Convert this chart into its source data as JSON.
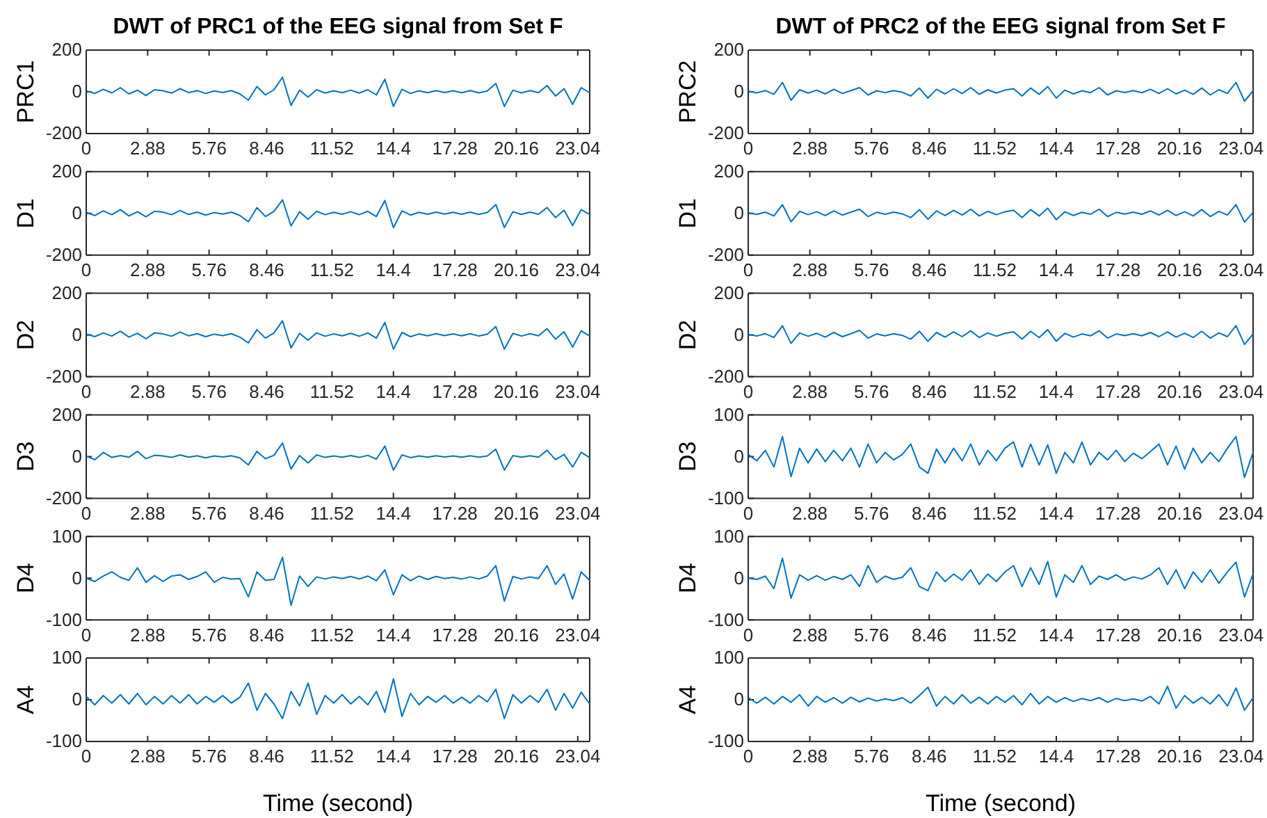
{
  "chart_data": [
    {
      "type": "line",
      "title": "DWT of PRC1 of the EEG signal from Set F",
      "ylabel": "PRC1",
      "color": "#0072bd",
      "xlim": [
        0,
        23.6
      ],
      "ylim": [
        -200,
        200
      ],
      "yticks": [
        -200,
        0,
        200
      ],
      "xticks": [
        0,
        2.88,
        5.76,
        8.46,
        11.52,
        14.4,
        17.28,
        20.16,
        23.04
      ],
      "x": [
        0,
        0.4,
        0.8,
        1.2,
        1.6,
        2,
        2.4,
        2.8,
        3.2,
        3.6,
        4,
        4.4,
        4.8,
        5.2,
        5.6,
        6,
        6.4,
        6.8,
        7.2,
        7.6,
        8,
        8.4,
        8.8,
        9.2,
        9.6,
        10,
        10.4,
        10.8,
        11.2,
        11.6,
        12,
        12.4,
        12.8,
        13.2,
        13.6,
        14,
        14.4,
        14.8,
        15.2,
        15.6,
        16,
        16.4,
        16.8,
        17.2,
        17.6,
        18,
        18.4,
        18.8,
        19.2,
        19.6,
        20,
        20.4,
        20.8,
        21.2,
        21.6,
        22,
        22.4,
        22.8,
        23.2,
        23.6
      ],
      "values": [
        5,
        -8,
        12,
        -5,
        20,
        -10,
        8,
        -18,
        10,
        5,
        -6,
        15,
        -4,
        6,
        -8,
        4,
        -3,
        6,
        -10,
        -40,
        25,
        -15,
        10,
        70,
        -65,
        8,
        -25,
        10,
        -6,
        5,
        -4,
        8,
        -6,
        10,
        -15,
        60,
        -70,
        12,
        -8,
        5,
        -4,
        6,
        -3,
        5,
        -4,
        6,
        -5,
        4,
        40,
        -70,
        8,
        -5,
        6,
        -4,
        30,
        -20,
        15,
        -60,
        20,
        -5
      ]
    },
    {
      "type": "line",
      "title": "DWT of PRC2 of the EEG signal from Set F",
      "ylabel": "PRC2",
      "color": "#0072bd",
      "xlim": [
        0,
        23.6
      ],
      "ylim": [
        -200,
        200
      ],
      "yticks": [
        -200,
        0,
        200
      ],
      "xticks": [
        0,
        2.88,
        5.76,
        8.46,
        11.52,
        14.4,
        17.28,
        20.16,
        23.04
      ],
      "x": [
        0,
        0.4,
        0.8,
        1.2,
        1.6,
        2,
        2.4,
        2.8,
        3.2,
        3.6,
        4,
        4.4,
        4.8,
        5.2,
        5.6,
        6,
        6.4,
        6.8,
        7.2,
        7.6,
        8,
        8.4,
        8.8,
        9.2,
        9.6,
        10,
        10.4,
        10.8,
        11.2,
        11.6,
        12,
        12.4,
        12.8,
        13.2,
        13.6,
        14,
        14.4,
        14.8,
        15.2,
        15.6,
        16,
        16.4,
        16.8,
        17.2,
        17.6,
        18,
        18.4,
        18.8,
        19.2,
        19.6,
        20,
        20.4,
        20.8,
        21.2,
        21.6,
        22,
        22.4,
        22.8,
        23.2,
        23.6
      ],
      "values": [
        3,
        -5,
        6,
        -12,
        45,
        -40,
        10,
        -6,
        8,
        -10,
        12,
        -8,
        6,
        20,
        -15,
        5,
        -4,
        6,
        -2,
        -20,
        18,
        -30,
        12,
        -10,
        15,
        -8,
        20,
        -12,
        10,
        -6,
        8,
        15,
        -20,
        18,
        -12,
        25,
        -30,
        8,
        -10,
        5,
        -4,
        20,
        -15,
        5,
        -3,
        6,
        -4,
        12,
        -8,
        15,
        -10,
        8,
        -12,
        18,
        -15,
        10,
        -8,
        45,
        -45,
        5
      ]
    },
    {
      "type": "line",
      "ylabel": "D1",
      "color": "#0072bd",
      "xlim": [
        0,
        23.6
      ],
      "ylim": [
        -200,
        200
      ],
      "yticks": [
        -200,
        0,
        200
      ],
      "xticks": [
        0,
        2.88,
        5.76,
        8.46,
        11.52,
        14.4,
        17.28,
        20.16,
        23.04
      ],
      "x": [
        0,
        0.4,
        0.8,
        1.2,
        1.6,
        2,
        2.4,
        2.8,
        3.2,
        3.6,
        4,
        4.4,
        4.8,
        5.2,
        5.6,
        6,
        6.4,
        6.8,
        7.2,
        7.6,
        8,
        8.4,
        8.8,
        9.2,
        9.6,
        10,
        10.4,
        10.8,
        11.2,
        11.6,
        12,
        12.4,
        12.8,
        13.2,
        13.6,
        14,
        14.4,
        14.8,
        15.2,
        15.6,
        16,
        16.4,
        16.8,
        17.2,
        17.6,
        18,
        18.4,
        18.8,
        19.2,
        19.6,
        20,
        20.4,
        20.8,
        21.2,
        21.6,
        22,
        22.4,
        22.8,
        23.2,
        23.6
      ],
      "values": [
        5,
        -10,
        12,
        -6,
        18,
        -12,
        8,
        -16,
        10,
        6,
        -6,
        14,
        -5,
        6,
        -8,
        4,
        -3,
        6,
        -10,
        -40,
        28,
        -15,
        10,
        65,
        -60,
        8,
        -28,
        10,
        -6,
        5,
        -4,
        8,
        -6,
        10,
        -15,
        62,
        -68,
        12,
        -8,
        5,
        -4,
        6,
        -3,
        5,
        -4,
        6,
        -5,
        4,
        42,
        -68,
        8,
        -5,
        6,
        -4,
        28,
        -20,
        15,
        -58,
        18,
        -5
      ]
    },
    {
      "type": "line",
      "ylabel": "D1",
      "color": "#0072bd",
      "xlim": [
        0,
        23.6
      ],
      "ylim": [
        -200,
        200
      ],
      "yticks": [
        -200,
        0,
        200
      ],
      "xticks": [
        0,
        2.88,
        5.76,
        8.46,
        11.52,
        14.4,
        17.28,
        20.16,
        23.04
      ],
      "x": [
        0,
        0.4,
        0.8,
        1.2,
        1.6,
        2,
        2.4,
        2.8,
        3.2,
        3.6,
        4,
        4.4,
        4.8,
        5.2,
        5.6,
        6,
        6.4,
        6.8,
        7.2,
        7.6,
        8,
        8.4,
        8.8,
        9.2,
        9.6,
        10,
        10.4,
        10.8,
        11.2,
        11.6,
        12,
        12.4,
        12.8,
        13.2,
        13.6,
        14,
        14.4,
        14.8,
        15.2,
        15.6,
        16,
        16.4,
        16.8,
        17.2,
        17.6,
        18,
        18.4,
        18.8,
        19.2,
        19.6,
        20,
        20.4,
        20.8,
        21.2,
        21.6,
        22,
        22.4,
        22.8,
        23.2,
        23.6
      ],
      "values": [
        3,
        -5,
        6,
        -12,
        42,
        -40,
        10,
        -6,
        8,
        -10,
        12,
        -8,
        6,
        20,
        -15,
        5,
        -4,
        6,
        -2,
        -20,
        18,
        -28,
        12,
        -10,
        15,
        -8,
        20,
        -12,
        10,
        -6,
        8,
        15,
        -20,
        18,
        -12,
        25,
        -30,
        8,
        -10,
        5,
        -4,
        20,
        -15,
        5,
        -3,
        6,
        -4,
        12,
        -8,
        15,
        -10,
        8,
        -12,
        18,
        -15,
        10,
        -8,
        42,
        -42,
        5
      ]
    },
    {
      "type": "line",
      "ylabel": "D2",
      "color": "#0072bd",
      "xlim": [
        0,
        23.6
      ],
      "ylim": [
        -200,
        200
      ],
      "yticks": [
        -200,
        0,
        200
      ],
      "xticks": [
        0,
        2.88,
        5.76,
        8.46,
        11.52,
        14.4,
        17.28,
        20.16,
        23.04
      ],
      "x": [
        0,
        0.4,
        0.8,
        1.2,
        1.6,
        2,
        2.4,
        2.8,
        3.2,
        3.6,
        4,
        4.4,
        4.8,
        5.2,
        5.6,
        6,
        6.4,
        6.8,
        7.2,
        7.6,
        8,
        8.4,
        8.8,
        9.2,
        9.6,
        10,
        10.4,
        10.8,
        11.2,
        11.6,
        12,
        12.4,
        12.8,
        13.2,
        13.6,
        14,
        14.4,
        14.8,
        15.2,
        15.6,
        16,
        16.4,
        16.8,
        17.2,
        17.6,
        18,
        18.4,
        18.8,
        19.2,
        19.6,
        20,
        20.4,
        20.8,
        21.2,
        21.6,
        22,
        22.4,
        22.8,
        23.2,
        23.6
      ],
      "values": [
        5,
        -8,
        10,
        -5,
        18,
        -10,
        8,
        -18,
        10,
        5,
        -6,
        14,
        -4,
        6,
        -8,
        4,
        -3,
        6,
        -10,
        -38,
        25,
        -15,
        10,
        68,
        -62,
        8,
        -25,
        10,
        -6,
        5,
        -4,
        8,
        -6,
        10,
        -15,
        60,
        -68,
        12,
        -8,
        5,
        -4,
        6,
        -3,
        5,
        -4,
        6,
        -5,
        4,
        40,
        -68,
        8,
        -5,
        6,
        -4,
        30,
        -20,
        15,
        -58,
        20,
        -5
      ]
    },
    {
      "type": "line",
      "ylabel": "D2",
      "color": "#0072bd",
      "xlim": [
        0,
        23.6
      ],
      "ylim": [
        -200,
        200
      ],
      "yticks": [
        -200,
        0,
        200
      ],
      "xticks": [
        0,
        2.88,
        5.76,
        8.46,
        11.52,
        14.4,
        17.28,
        20.16,
        23.04
      ],
      "x": [
        0,
        0.4,
        0.8,
        1.2,
        1.6,
        2,
        2.4,
        2.8,
        3.2,
        3.6,
        4,
        4.4,
        4.8,
        5.2,
        5.6,
        6,
        6.4,
        6.8,
        7.2,
        7.6,
        8,
        8.4,
        8.8,
        9.2,
        9.6,
        10,
        10.4,
        10.8,
        11.2,
        11.6,
        12,
        12.4,
        12.8,
        13.2,
        13.6,
        14,
        14.4,
        14.8,
        15.2,
        15.6,
        16,
        16.4,
        16.8,
        17.2,
        17.6,
        18,
        18.4,
        18.8,
        19.2,
        19.6,
        20,
        20.4,
        20.8,
        21.2,
        21.6,
        22,
        22.4,
        22.8,
        23.2,
        23.6
      ],
      "values": [
        3,
        -5,
        6,
        -12,
        44,
        -40,
        10,
        -6,
        8,
        -10,
        12,
        -8,
        6,
        22,
        -15,
        5,
        -4,
        6,
        -2,
        -20,
        18,
        -30,
        12,
        -10,
        15,
        -8,
        20,
        -12,
        10,
        -6,
        8,
        15,
        -20,
        18,
        -12,
        25,
        -30,
        8,
        -10,
        5,
        -4,
        20,
        -15,
        5,
        -3,
        6,
        -4,
        12,
        -8,
        15,
        -10,
        8,
        -12,
        18,
        -15,
        10,
        -8,
        45,
        -45,
        5
      ]
    },
    {
      "type": "line",
      "ylabel": "D3",
      "color": "#0072bd",
      "xlim": [
        0,
        23.6
      ],
      "ylim": [
        -200,
        200
      ],
      "yticks": [
        -200,
        0,
        200
      ],
      "xticks": [
        0,
        2.88,
        5.76,
        8.46,
        11.52,
        14.4,
        17.28,
        20.16,
        23.04
      ],
      "x": [
        0,
        0.4,
        0.8,
        1.2,
        1.6,
        2,
        2.4,
        2.8,
        3.2,
        3.6,
        4,
        4.4,
        4.8,
        5.2,
        5.6,
        6,
        6.4,
        6.8,
        7.2,
        7.6,
        8,
        8.4,
        8.8,
        9.2,
        9.6,
        10,
        10.4,
        10.8,
        11.2,
        11.6,
        12,
        12.4,
        12.8,
        13.2,
        13.6,
        14,
        14.4,
        14.8,
        15.2,
        15.6,
        16,
        16.4,
        16.8,
        17.2,
        17.6,
        18,
        18.4,
        18.8,
        19.2,
        19.6,
        20,
        20.4,
        20.8,
        21.2,
        21.6,
        22,
        22.4,
        22.8,
        23.2,
        23.6
      ],
      "values": [
        3,
        -15,
        20,
        -4,
        5,
        -3,
        25,
        -10,
        6,
        3,
        -4,
        8,
        -3,
        4,
        -6,
        3,
        -2,
        4,
        -6,
        -40,
        25,
        -10,
        6,
        65,
        -60,
        5,
        -30,
        8,
        -4,
        3,
        -3,
        5,
        -4,
        6,
        -12,
        50,
        -65,
        8,
        -5,
        3,
        -3,
        4,
        -2,
        3,
        -3,
        4,
        -3,
        3,
        35,
        -65,
        5,
        -3,
        4,
        -3,
        30,
        -15,
        10,
        -50,
        20,
        -5
      ]
    },
    {
      "type": "line",
      "ylabel": "D3",
      "color": "#0072bd",
      "xlim": [
        0,
        23.6
      ],
      "ylim": [
        -100,
        100
      ],
      "yticks": [
        -100,
        0,
        100
      ],
      "xticks": [
        0,
        2.88,
        5.76,
        8.46,
        11.52,
        14.4,
        17.28,
        20.16,
        23.04
      ],
      "x": [
        0,
        0.4,
        0.8,
        1.2,
        1.6,
        2,
        2.4,
        2.8,
        3.2,
        3.6,
        4,
        4.4,
        4.8,
        5.2,
        5.6,
        6,
        6.4,
        6.8,
        7.2,
        7.6,
        8,
        8.4,
        8.8,
        9.2,
        9.6,
        10,
        10.4,
        10.8,
        11.2,
        11.6,
        12,
        12.4,
        12.8,
        13.2,
        13.6,
        14,
        14.4,
        14.8,
        15.2,
        15.6,
        16,
        16.4,
        16.8,
        17.2,
        17.6,
        18,
        18.4,
        18.8,
        19.2,
        19.6,
        20,
        20.4,
        20.8,
        21.2,
        21.6,
        22,
        22.4,
        22.8,
        23.2,
        23.6
      ],
      "values": [
        5,
        -10,
        15,
        -25,
        48,
        -48,
        20,
        -15,
        18,
        -12,
        15,
        -10,
        20,
        -25,
        30,
        -15,
        10,
        -8,
        5,
        30,
        -25,
        -40,
        18,
        -15,
        20,
        -10,
        30,
        -20,
        15,
        -10,
        20,
        35,
        -25,
        30,
        -20,
        28,
        -40,
        10,
        -15,
        35,
        -20,
        10,
        -8,
        15,
        -12,
        8,
        -5,
        12,
        30,
        -20,
        25,
        -30,
        20,
        -15,
        10,
        -12,
        20,
        48,
        -50,
        10
      ]
    },
    {
      "type": "line",
      "ylabel": "D4",
      "color": "#0072bd",
      "xlim": [
        0,
        23.6
      ],
      "ylim": [
        -100,
        100
      ],
      "yticks": [
        -100,
        0,
        100
      ],
      "xticks": [
        0,
        2.88,
        5.76,
        8.46,
        11.52,
        14.4,
        17.28,
        20.16,
        23.04
      ],
      "x": [
        0,
        0.4,
        0.8,
        1.2,
        1.6,
        2,
        2.4,
        2.8,
        3.2,
        3.6,
        4,
        4.4,
        4.8,
        5.2,
        5.6,
        6,
        6.4,
        6.8,
        7.2,
        7.6,
        8,
        8.4,
        8.8,
        9.2,
        9.6,
        10,
        10.4,
        10.8,
        11.2,
        11.6,
        12,
        12.4,
        12.8,
        13.2,
        13.6,
        14,
        14.4,
        14.8,
        15.2,
        15.6,
        16,
        16.4,
        16.8,
        17.2,
        17.6,
        18,
        18.4,
        18.8,
        19.2,
        19.6,
        20,
        20.4,
        20.8,
        21.2,
        21.6,
        22,
        22.4,
        22.8,
        23.2,
        23.6
      ],
      "values": [
        0,
        -8,
        5,
        15,
        2,
        -5,
        25,
        -10,
        6,
        -8,
        5,
        8,
        -3,
        4,
        15,
        -10,
        2,
        -2,
        -1,
        -45,
        15,
        -5,
        -3,
        50,
        -65,
        5,
        -20,
        3,
        -2,
        3,
        -1,
        4,
        -2,
        5,
        -6,
        20,
        -40,
        8,
        -6,
        5,
        -3,
        4,
        -1,
        2,
        -2,
        3,
        -2,
        5,
        30,
        -55,
        4,
        -2,
        3,
        -1,
        30,
        -15,
        10,
        -50,
        15,
        -5
      ]
    },
    {
      "type": "line",
      "ylabel": "D4",
      "color": "#0072bd",
      "xlim": [
        0,
        23.6
      ],
      "ylim": [
        -100,
        100
      ],
      "yticks": [
        -100,
        0,
        100
      ],
      "xticks": [
        0,
        2.88,
        5.76,
        8.46,
        11.52,
        14.4,
        17.28,
        20.16,
        23.04
      ],
      "x": [
        0,
        0.4,
        0.8,
        1.2,
        1.6,
        2,
        2.4,
        2.8,
        3.2,
        3.6,
        4,
        4.4,
        4.8,
        5.2,
        5.6,
        6,
        6.4,
        6.8,
        7.2,
        7.6,
        8,
        8.4,
        8.8,
        9.2,
        9.6,
        10,
        10.4,
        10.8,
        11.2,
        11.6,
        12,
        12.4,
        12.8,
        13.2,
        13.6,
        14,
        14.4,
        14.8,
        15.2,
        15.6,
        16,
        16.4,
        16.8,
        17.2,
        17.6,
        18,
        18.4,
        18.8,
        19.2,
        19.6,
        20,
        20.4,
        20.8,
        21.2,
        21.6,
        22,
        22.4,
        22.8,
        23.2,
        23.6
      ],
      "values": [
        0,
        -3,
        5,
        -25,
        48,
        -48,
        8,
        -5,
        6,
        -5,
        4,
        -3,
        8,
        -20,
        30,
        -10,
        5,
        -3,
        2,
        25,
        -20,
        -30,
        15,
        -8,
        10,
        -5,
        20,
        -15,
        10,
        -8,
        15,
        30,
        -20,
        25,
        -15,
        40,
        -45,
        8,
        -10,
        30,
        -15,
        5,
        -3,
        8,
        -5,
        3,
        -2,
        8,
        25,
        -15,
        20,
        -25,
        15,
        -10,
        20,
        -12,
        15,
        38,
        -45,
        10
      ]
    },
    {
      "type": "line",
      "ylabel": "A4",
      "xlabel": "Time (second)",
      "color": "#0072bd",
      "xlim": [
        0,
        23.6
      ],
      "ylim": [
        -100,
        100
      ],
      "yticks": [
        -100,
        0,
        100
      ],
      "xticks": [
        0,
        2.88,
        5.76,
        8.46,
        11.52,
        14.4,
        17.28,
        20.16,
        23.04
      ],
      "x": [
        0,
        0.4,
        0.8,
        1.2,
        1.6,
        2,
        2.4,
        2.8,
        3.2,
        3.6,
        4,
        4.4,
        4.8,
        5.2,
        5.6,
        6,
        6.4,
        6.8,
        7.2,
        7.6,
        8,
        8.4,
        8.8,
        9.2,
        9.6,
        10,
        10.4,
        10.8,
        11.2,
        11.6,
        12,
        12.4,
        12.8,
        13.2,
        13.6,
        14,
        14.4,
        14.8,
        15.2,
        15.6,
        16,
        16.4,
        16.8,
        17.2,
        17.6,
        18,
        18.4,
        18.8,
        19.2,
        19.6,
        20,
        20.4,
        20.8,
        21.2,
        21.6,
        22,
        22.4,
        22.8,
        23.2,
        23.6
      ],
      "values": [
        8,
        -12,
        10,
        -8,
        12,
        -10,
        15,
        -12,
        8,
        -10,
        10,
        -8,
        12,
        -10,
        8,
        -6,
        10,
        -8,
        6,
        40,
        -25,
        15,
        -10,
        -45,
        20,
        -15,
        40,
        -35,
        10,
        -8,
        12,
        -10,
        8,
        -12,
        20,
        -30,
        50,
        -40,
        15,
        -12,
        8,
        -6,
        10,
        -8,
        6,
        -8,
        10,
        -5,
        25,
        -45,
        12,
        -8,
        10,
        -6,
        25,
        -25,
        15,
        -20,
        18,
        -10
      ]
    },
    {
      "type": "line",
      "ylabel": "A4",
      "xlabel": "Time (second)",
      "color": "#0072bd",
      "xlim": [
        0,
        23.6
      ],
      "ylim": [
        -100,
        100
      ],
      "yticks": [
        -100,
        0,
        100
      ],
      "xticks": [
        0,
        2.88,
        5.76,
        8.46,
        11.52,
        14.4,
        17.28,
        20.16,
        23.04
      ],
      "x": [
        0,
        0.4,
        0.8,
        1.2,
        1.6,
        2,
        2.4,
        2.8,
        3.2,
        3.6,
        4,
        4.4,
        4.8,
        5.2,
        5.6,
        6,
        6.4,
        6.8,
        7.2,
        7.6,
        8,
        8.4,
        8.8,
        9.2,
        9.6,
        10,
        10.4,
        10.8,
        11.2,
        11.6,
        12,
        12.4,
        12.8,
        13.2,
        13.6,
        14,
        14.4,
        14.8,
        15.2,
        15.6,
        16,
        16.4,
        16.8,
        17.2,
        17.6,
        18,
        18.4,
        18.8,
        19.2,
        19.6,
        20,
        20.4,
        20.8,
        21.2,
        21.6,
        22,
        22.4,
        22.8,
        23.2,
        23.6
      ],
      "values": [
        5,
        -8,
        6,
        -10,
        8,
        -6,
        12,
        -15,
        8,
        -6,
        5,
        -8,
        6,
        -5,
        4,
        -3,
        2,
        -2,
        5,
        -8,
        10,
        30,
        -15,
        8,
        -10,
        12,
        -8,
        6,
        -10,
        8,
        -6,
        10,
        -12,
        15,
        -10,
        8,
        -6,
        5,
        -4,
        3,
        -2,
        5,
        -6,
        3,
        -2,
        2,
        -3,
        8,
        -10,
        32,
        -20,
        10,
        -8,
        6,
        -10,
        12,
        -15,
        28,
        -25,
        5
      ]
    }
  ]
}
